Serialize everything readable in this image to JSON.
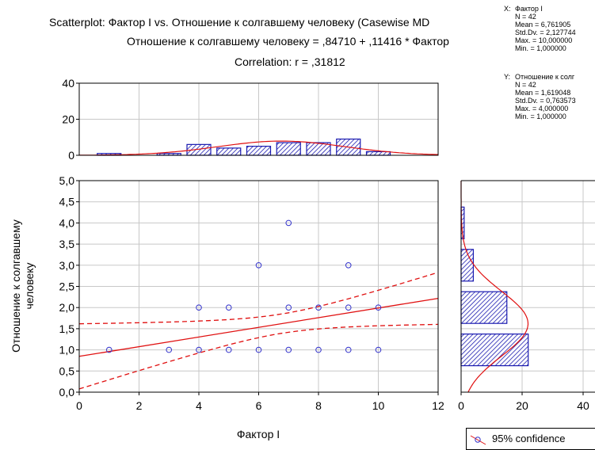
{
  "titles": {
    "line1": "Scatterplot: Фактор I vs. Отношение к солгавшему человеку (Casewise MD",
    "line2": "Отношение к солгавшему человеку = ,84710 + ,11416 * Фактор",
    "line3": "Correlation: r = ,31812"
  },
  "stats_x": {
    "head": "X:",
    "lines": [
      "Фактор I",
      "N = 42",
      "Mean = 6,761905",
      "Std.Dv. = 2,127744",
      "Max. = 10,000000",
      "Min. = 1,000000"
    ]
  },
  "stats_y": {
    "head": "Y:",
    "lines": [
      "Отношение к солг",
      "N = 42",
      "Mean = 1,619048",
      "Std.Dv. = 0,763573",
      "Max. = 4,000000",
      "Min. = 1,000000"
    ]
  },
  "legend": {
    "label": "95% confidence"
  },
  "colors": {
    "points": "#3333cc",
    "fit": "#e01010",
    "bars": "#1a1ab0",
    "grid": "#c8c8c8"
  },
  "chart_data": [
    {
      "type": "scatter",
      "xlabel": "Фактор I",
      "ylabel": "Отношение к солгавшему человеку",
      "xlim": [
        0,
        12
      ],
      "ylim": [
        0,
        5
      ],
      "xticks": [
        "0",
        "2",
        "4",
        "6",
        "8",
        "10",
        "12"
      ],
      "yticks": [
        "0,0",
        "0,5",
        "1,0",
        "1,5",
        "2,0",
        "2,5",
        "3,0",
        "3,5",
        "4,0",
        "4,5",
        "5,0"
      ],
      "grid": true,
      "points": [
        [
          1,
          1
        ],
        [
          3,
          1
        ],
        [
          4,
          1
        ],
        [
          5,
          1
        ],
        [
          6,
          1
        ],
        [
          7,
          1
        ],
        [
          8,
          1
        ],
        [
          9,
          1
        ],
        [
          10,
          1
        ],
        [
          4,
          2
        ],
        [
          5,
          2
        ],
        [
          7,
          2
        ],
        [
          8,
          2
        ],
        [
          9,
          2
        ],
        [
          10,
          2
        ],
        [
          6,
          3
        ],
        [
          9,
          3
        ],
        [
          7,
          4
        ]
      ],
      "regression": {
        "intercept": 0.8471,
        "slope": 0.11416
      },
      "confidence_level": 0.95
    },
    {
      "type": "bar",
      "orientation": "vertical",
      "variable": "Фактор I",
      "categories": [
        1,
        3,
        4,
        5,
        6,
        7,
        8,
        9,
        10
      ],
      "values": [
        1,
        1,
        6,
        4,
        5,
        7,
        7,
        9,
        2
      ],
      "ylim": [
        0,
        40
      ],
      "yticks": [
        "0",
        "20",
        "40"
      ],
      "normal_curve": true
    },
    {
      "type": "bar",
      "orientation": "horizontal",
      "variable": "Отношение к солгавшему человеку",
      "categories": [
        1,
        2,
        3,
        4
      ],
      "values": [
        22,
        15,
        4,
        1
      ],
      "xlim": [
        0,
        40
      ],
      "xticks": [
        "0",
        "20",
        "40"
      ],
      "normal_curve": true
    }
  ]
}
